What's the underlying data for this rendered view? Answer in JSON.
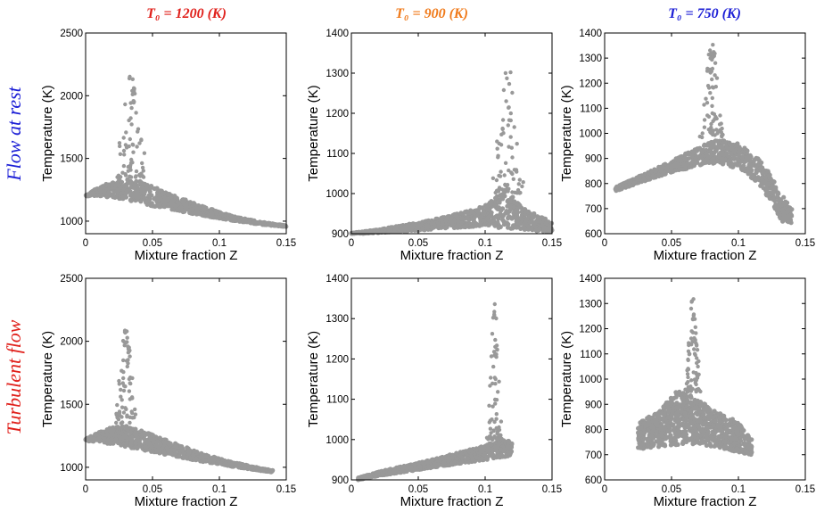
{
  "figure": {
    "column_titles": [
      {
        "text": "T₀ = 1200 (K)",
        "color": "#e0201b"
      },
      {
        "text": "T₀ = 900 (K)",
        "color": "#f07a1a"
      },
      {
        "text": "T₀ = 750 (K)",
        "color": "#1c1fd6"
      }
    ],
    "row_titles": [
      {
        "text": "Flow at rest",
        "color": "#1c1fd6"
      },
      {
        "text": "Turbulent flow",
        "color": "#e0201b"
      }
    ],
    "marker_color": "#999999"
  },
  "chart_data": [
    {
      "type": "scatter",
      "row": "Flow at rest",
      "column": "T₀ = 1200 (K)",
      "xlabel": "Mixture fraction Z",
      "ylabel": "Temperature (K)",
      "xlim": [
        0,
        0.15
      ],
      "ylim": [
        900,
        2500
      ],
      "xticks": [
        0,
        0.05,
        0.1,
        0.15
      ],
      "xtick_labels": [
        "0",
        "0.05",
        "0.1",
        "0.15"
      ],
      "yticks": [
        1000,
        1500,
        2000,
        2500
      ],
      "ytick_labels": [
        "1000",
        "1500",
        "2000",
        "2500"
      ],
      "band": {
        "x": [
          0.0,
          0.01,
          0.02,
          0.03,
          0.04,
          0.05,
          0.07,
          0.09,
          0.11,
          0.13,
          0.15
        ],
        "y_low": [
          1200,
          1200,
          1190,
          1170,
          1150,
          1120,
          1080,
          1040,
          1005,
          975,
          955
        ],
        "y_high": [
          1210,
          1270,
          1320,
          1340,
          1320,
          1280,
          1190,
          1110,
          1040,
          995,
          965
        ]
      },
      "spike": {
        "x_range": [
          0.02,
          0.045
        ],
        "y_range": [
          1350,
          2170
        ],
        "peak_x": 0.034
      }
    },
    {
      "type": "scatter",
      "row": "Flow at rest",
      "column": "T₀ = 900 (K)",
      "xlabel": "Mixture fraction Z",
      "ylabel": "Temperature (K)",
      "xlim": [
        0,
        0.15
      ],
      "ylim": [
        900,
        1400
      ],
      "xticks": [
        0,
        0.05,
        0.1,
        0.15
      ],
      "xtick_labels": [
        "0",
        "0.05",
        "0.1",
        "0.15"
      ],
      "yticks": [
        900,
        1000,
        1100,
        1200,
        1300,
        1400
      ],
      "ytick_labels": [
        "900",
        "1000",
        "1100",
        "1200",
        "1300",
        "1400"
      ],
      "band": {
        "x": [
          0.0,
          0.02,
          0.04,
          0.06,
          0.08,
          0.1,
          0.115,
          0.13,
          0.15
        ],
        "y_low": [
          900,
          902,
          905,
          910,
          915,
          920,
          912,
          908,
          905
        ],
        "y_high": [
          902,
          910,
          922,
          935,
          950,
          970,
          1010,
          960,
          930
        ]
      },
      "spike": {
        "x_range": [
          0.105,
          0.13
        ],
        "y_range": [
          1000,
          1315
        ],
        "peak_x": 0.117
      }
    },
    {
      "type": "scatter",
      "row": "Flow at rest",
      "column": "T₀ = 750 (K)",
      "xlabel": "Mixture fraction Z",
      "ylabel": "Temperature (K)",
      "xlim": [
        0,
        0.15
      ],
      "ylim": [
        600,
        1400
      ],
      "xticks": [
        0,
        0.05,
        0.1,
        0.15
      ],
      "xtick_labels": [
        "0",
        "0.05",
        "0.1",
        "0.15"
      ],
      "yticks": [
        600,
        700,
        800,
        900,
        1000,
        1100,
        1200,
        1300,
        1400
      ],
      "ytick_labels": [
        "600",
        "700",
        "800",
        "900",
        "1000",
        "1100",
        "1200",
        "1300",
        "1400"
      ],
      "band": {
        "x": [
          0.008,
          0.03,
          0.05,
          0.07,
          0.085,
          0.1,
          0.115,
          0.125,
          0.132,
          0.14
        ],
        "y_low": [
          770,
          810,
          845,
          870,
          880,
          860,
          800,
          720,
          650,
          640
        ],
        "y_high": [
          785,
          840,
          890,
          945,
          975,
          960,
          900,
          830,
          760,
          700
        ]
      },
      "spike": {
        "x_range": [
          0.072,
          0.09
        ],
        "y_range": [
          980,
          1370
        ],
        "peak_x": 0.08
      }
    },
    {
      "type": "scatter",
      "row": "Turbulent flow",
      "column": "T₀ = 1200 (K)",
      "xlabel": "Mixture fraction Z",
      "ylabel": "Temperature (K)",
      "xlim": [
        0,
        0.15
      ],
      "ylim": [
        900,
        2500
      ],
      "xticks": [
        0,
        0.05,
        0.1,
        0.15
      ],
      "xtick_labels": [
        "0",
        "0.05",
        "0.1",
        "0.15"
      ],
      "yticks": [
        1000,
        1500,
        2000,
        2500
      ],
      "ytick_labels": [
        "1000",
        "1500",
        "2000",
        "2500"
      ],
      "band": {
        "x": [
          0.0,
          0.01,
          0.02,
          0.03,
          0.05,
          0.07,
          0.09,
          0.11,
          0.13,
          0.14
        ],
        "y_low": [
          1210,
          1200,
          1180,
          1160,
          1120,
          1080,
          1040,
          1005,
          975,
          960
        ],
        "y_high": [
          1225,
          1280,
          1320,
          1330,
          1260,
          1180,
          1100,
          1040,
          995,
          975
        ]
      },
      "spike": {
        "x_range": [
          0.018,
          0.035
        ],
        "y_range": [
          1350,
          2100
        ],
        "peak_x": 0.03
      }
    },
    {
      "type": "scatter",
      "row": "Turbulent flow",
      "column": "T₀ = 900 (K)",
      "xlabel": "Mixture fraction Z",
      "ylabel": "Temperature (K)",
      "xlim": [
        0,
        0.15
      ],
      "ylim": [
        900,
        1400
      ],
      "xticks": [
        0,
        0.05,
        0.1,
        0.15
      ],
      "xtick_labels": [
        "0",
        "0.05",
        "0.1",
        "0.15"
      ],
      "yticks": [
        900,
        1000,
        1100,
        1200,
        1300,
        1400
      ],
      "ytick_labels": [
        "900",
        "1000",
        "1100",
        "1200",
        "1300",
        "1400"
      ],
      "band": {
        "x": [
          0.005,
          0.02,
          0.04,
          0.06,
          0.08,
          0.1,
          0.11,
          0.12
        ],
        "y_low": [
          900,
          910,
          920,
          930,
          940,
          950,
          955,
          960
        ],
        "y_high": [
          905,
          920,
          935,
          950,
          968,
          985,
          1000,
          995
        ]
      },
      "spike": {
        "x_range": [
          0.1,
          0.112
        ],
        "y_range": [
          1000,
          1350
        ],
        "peak_x": 0.107
      }
    },
    {
      "type": "scatter",
      "row": "Turbulent flow",
      "column": "T₀ = 750 (K)",
      "xlabel": "Mixture fraction Z",
      "ylabel": "Temperature (K)",
      "xlim": [
        0,
        0.15
      ],
      "ylim": [
        600,
        1400
      ],
      "xticks": [
        0,
        0.05,
        0.1,
        0.15
      ],
      "xtick_labels": [
        "0",
        "0.05",
        "0.1",
        "0.15"
      ],
      "yticks": [
        600,
        700,
        800,
        900,
        1000,
        1100,
        1200,
        1300,
        1400
      ],
      "ytick_labels": [
        "600",
        "700",
        "800",
        "900",
        "1000",
        "1100",
        "1200",
        "1300",
        "1400"
      ],
      "band": {
        "x": [
          0.025,
          0.04,
          0.055,
          0.07,
          0.085,
          0.1,
          0.11
        ],
        "y_low": [
          720,
          730,
          740,
          740,
          730,
          710,
          700
        ],
        "y_high": [
          830,
          870,
          960,
          920,
          870,
          830,
          760
        ]
      },
      "spike": {
        "x_range": [
          0.06,
          0.072
        ],
        "y_range": [
          950,
          1320
        ],
        "peak_x": 0.066
      }
    }
  ]
}
